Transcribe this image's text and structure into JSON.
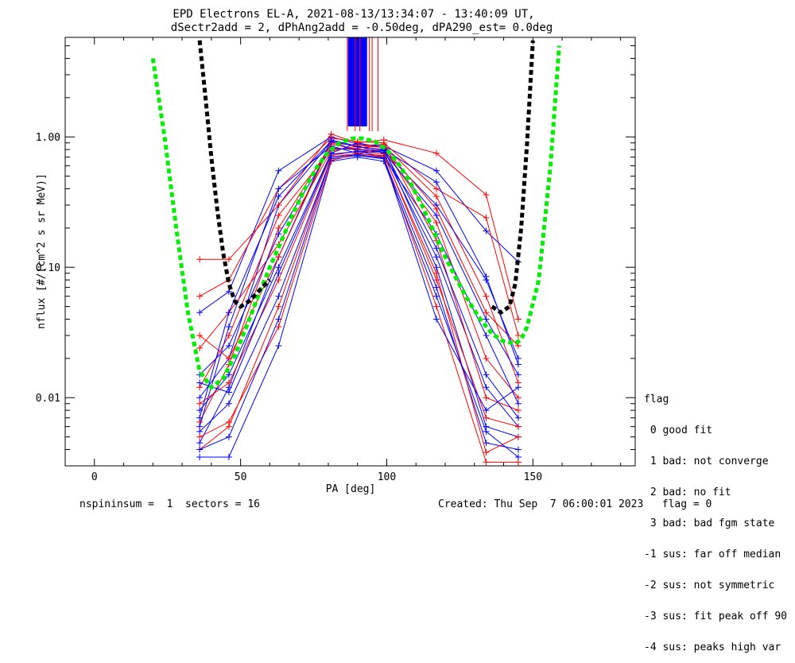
{
  "chart_data": {
    "type": "line",
    "title_line1": "EPD Electrons EL-A, 2021-08-13/13:34:07 - 13:40:09 UT,",
    "title_line2": "dSectr2add = 2, dPhAng2add = -0.50deg, dPA290_est=   0.0deg",
    "xlabel": "PA [deg]",
    "ylabel": "nflux [#/(cm^2 s sr MeV)]",
    "xlim": [
      -10,
      185
    ],
    "ylim": [
      0.003,
      5.8
    ],
    "y_scale": "log",
    "x_ticks": [
      0,
      50,
      100,
      150
    ],
    "x_tick_labels": [
      "0",
      "50",
      "100",
      "150"
    ],
    "y_ticks": [
      0.01,
      0.1,
      1.0
    ],
    "y_tick_labels": [
      "0.01",
      "0.10",
      "1.00"
    ],
    "grid": false,
    "pa_bins": [
      36,
      46,
      63,
      81,
      90,
      99,
      117,
      134,
      145
    ],
    "series": [
      {
        "color": "#0000ff",
        "values": [
          0.0045,
          0.012,
          0.12,
          0.95,
          0.85,
          0.75,
          0.12,
          0.012,
          0.006
        ]
      },
      {
        "color": "#ff0000",
        "values": [
          0.0065,
          0.018,
          0.2,
          0.88,
          0.8,
          0.8,
          0.22,
          0.02,
          0.01
        ]
      },
      {
        "color": "#0000ff",
        "values": [
          0.01,
          0.02,
          0.3,
          0.92,
          0.78,
          0.7,
          0.18,
          0.03,
          0.009
        ]
      },
      {
        "color": "#ff0000",
        "values": [
          0.012,
          0.03,
          0.25,
          0.8,
          0.82,
          0.86,
          0.35,
          0.06,
          0.013
        ]
      },
      {
        "color": "#0000ff",
        "values": [
          0.008,
          0.015,
          0.1,
          0.75,
          0.9,
          0.82,
          0.1,
          0.006,
          0.005
        ]
      },
      {
        "color": "#ff0000",
        "values": [
          0.115,
          0.115,
          0.3,
          1.05,
          0.9,
          0.95,
          0.75,
          0.36,
          0.04
        ]
      },
      {
        "color": "#0000ff",
        "values": [
          0.045,
          0.065,
          0.55,
          1.0,
          0.88,
          0.85,
          0.55,
          0.19,
          0.11
        ]
      },
      {
        "color": "#ff0000",
        "values": [
          0.06,
          0.08,
          0.4,
          0.98,
          0.92,
          0.9,
          0.4,
          0.24,
          0.03
        ]
      },
      {
        "color": "#0000ff",
        "values": [
          0.006,
          0.035,
          0.4,
          0.85,
          0.75,
          0.78,
          0.3,
          0.08,
          0.02
        ]
      },
      {
        "color": "#ff0000",
        "values": [
          0.004,
          0.006,
          0.05,
          0.7,
          0.75,
          0.7,
          0.05,
          0.0032,
          0.0032
        ]
      },
      {
        "color": "#0000ff",
        "values": [
          0.0035,
          0.0035,
          0.025,
          0.65,
          0.7,
          0.65,
          0.06,
          0.0055,
          0.0035
        ]
      },
      {
        "color": "#ff0000",
        "values": [
          0.024,
          0.045,
          0.15,
          0.78,
          0.85,
          0.88,
          0.16,
          0.01,
          0.008
        ]
      },
      {
        "color": "#0000ff",
        "values": [
          0.015,
          0.025,
          0.18,
          0.82,
          0.8,
          0.76,
          0.25,
          0.04,
          0.015
        ]
      },
      {
        "color": "#ff0000",
        "values": [
          0.009,
          0.013,
          0.08,
          0.72,
          0.78,
          0.74,
          0.08,
          0.007,
          0.006
        ]
      },
      {
        "color": "#0000ff",
        "values": [
          0.0055,
          0.009,
          0.06,
          0.68,
          0.72,
          0.68,
          0.07,
          0.0045,
          0.004
        ]
      },
      {
        "color": "#ff0000",
        "values": [
          0.03,
          0.02,
          0.12,
          0.9,
          0.86,
          0.83,
          0.28,
          0.045,
          0.025
        ]
      },
      {
        "color": "#0000ff",
        "values": [
          0.007,
          0.045,
          0.35,
          0.93,
          0.84,
          0.8,
          0.45,
          0.085,
          0.018
        ]
      },
      {
        "color": "#ff0000",
        "values": [
          0.005,
          0.0065,
          0.035,
          0.66,
          0.74,
          0.72,
          0.09,
          0.0038,
          0.005
        ]
      },
      {
        "color": "#0000ff",
        "values": [
          0.013,
          0.011,
          0.09,
          0.74,
          0.77,
          0.79,
          0.14,
          0.015,
          0.007
        ]
      },
      {
        "color": "#0000ff",
        "values": [
          0.004,
          0.005,
          0.04,
          0.7,
          0.73,
          0.69,
          0.04,
          0.008,
          0.012
        ]
      }
    ],
    "overlays": [
      {
        "color": "#00ee00",
        "style": "dashed",
        "x": [
          20,
          24,
          28,
          32,
          36,
          40,
          44,
          48,
          52,
          56,
          60,
          64,
          68,
          72,
          76,
          80,
          84,
          88,
          90,
          92,
          96,
          100,
          104,
          108,
          112,
          116,
          120,
          124,
          128,
          132,
          136,
          140,
          144,
          146,
          148,
          152,
          156,
          159
        ],
        "y": [
          4.0,
          1.0,
          0.2,
          0.045,
          0.016,
          0.012,
          0.014,
          0.021,
          0.035,
          0.06,
          0.1,
          0.16,
          0.26,
          0.4,
          0.58,
          0.77,
          0.9,
          0.97,
          0.98,
          0.97,
          0.92,
          0.8,
          0.62,
          0.45,
          0.3,
          0.19,
          0.12,
          0.08,
          0.055,
          0.04,
          0.031,
          0.027,
          0.026,
          0.028,
          0.035,
          0.08,
          0.6,
          5.0
        ]
      },
      {
        "color": "#000000",
        "style": "dashed",
        "x": [
          36,
          38,
          40,
          42,
          44,
          46,
          48,
          50,
          53,
          56,
          60,
          136,
          139,
          142,
          144,
          146,
          148,
          150
        ],
        "y": [
          5.5,
          2.0,
          0.7,
          0.28,
          0.13,
          0.075,
          0.055,
          0.05,
          0.055,
          0.065,
          0.08,
          0.05,
          0.045,
          0.05,
          0.075,
          0.2,
          0.9,
          5.5
        ]
      }
    ],
    "spikes": {
      "blue_x": [
        87,
        87.5,
        88,
        88.5,
        89,
        89.5,
        90,
        90.5,
        91,
        91.5,
        92,
        92.5,
        93
      ],
      "red_x": [
        86.5,
        89.2,
        90.8,
        94,
        95,
        97
      ]
    },
    "legend": {
      "title": "flag",
      "entries": [
        " 0 good fit",
        " 1 bad: not converge",
        " 2 bad: no fit",
        " 3 bad: bad fgm state",
        "-1 sus: far off median",
        "-2 sus: not symmetric",
        "-3 sus: fit peak off 90",
        "-4 sus: peaks high var"
      ]
    }
  },
  "footer": {
    "left": "nspininsum =  1  sectors = 16",
    "right": "Created: Thu Sep  7 06:00:01 2023   flag = 0"
  }
}
